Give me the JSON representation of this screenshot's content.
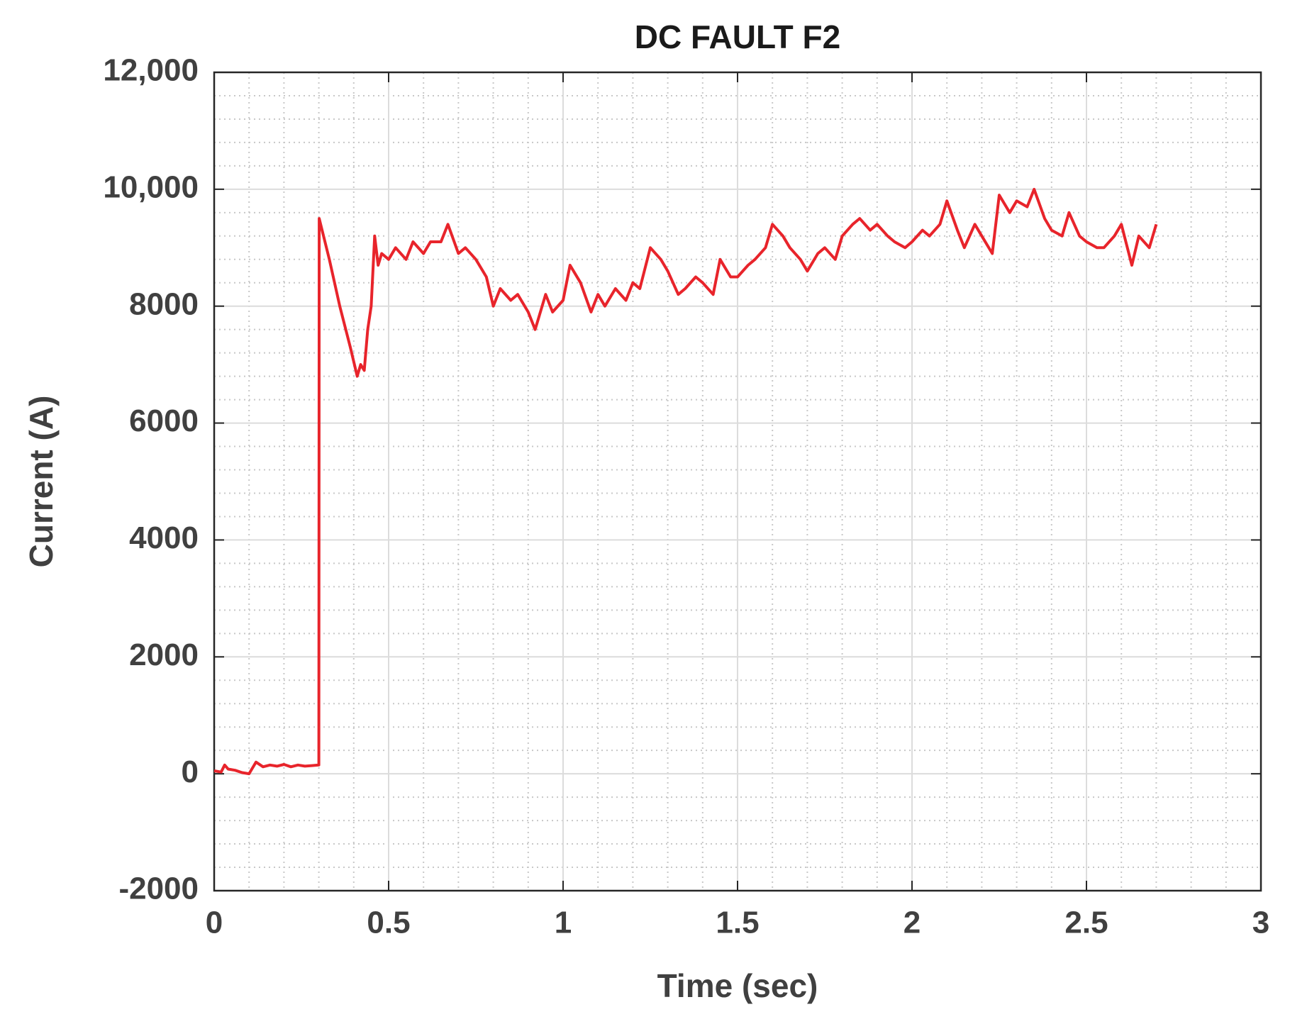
{
  "chart_data": {
    "type": "line",
    "title": "DC FAULT F2",
    "x_label": "Time (sec)",
    "y_label": "Current (A)",
    "xlim": [
      0,
      3
    ],
    "xticks": [
      0,
      0.5,
      1,
      1.5,
      2,
      2.5,
      3
    ],
    "ylim": [
      -2000,
      12000
    ],
    "yticks": [
      -2000,
      0,
      2000,
      4000,
      6000,
      8000,
      {
        "value": 10000,
        "label": "10,000"
      },
      {
        "value": 12000,
        "label": "12,000"
      }
    ],
    "grid": true,
    "minor_grid": true,
    "series": [
      {
        "color": "#e8242b",
        "x": [
          0,
          0.02,
          0.03,
          0.04,
          0.06,
          0.08,
          0.1,
          0.11,
          0.12,
          0.14,
          0.16,
          0.18,
          0.2,
          0.22,
          0.24,
          0.26,
          0.28,
          0.3,
          0.301,
          0.33,
          0.36,
          0.39,
          0.41,
          0.42,
          0.43,
          0.44,
          0.45,
          0.46,
          0.47,
          0.48,
          0.5,
          0.52,
          0.55,
          0.57,
          0.6,
          0.62,
          0.65,
          0.67,
          0.7,
          0.72,
          0.75,
          0.78,
          0.8,
          0.82,
          0.85,
          0.87,
          0.9,
          0.92,
          0.95,
          0.97,
          1.0,
          1.02,
          1.05,
          1.08,
          1.1,
          1.12,
          1.15,
          1.18,
          1.2,
          1.22,
          1.25,
          1.28,
          1.3,
          1.33,
          1.35,
          1.38,
          1.4,
          1.43,
          1.45,
          1.48,
          1.5,
          1.53,
          1.55,
          1.58,
          1.6,
          1.63,
          1.65,
          1.68,
          1.7,
          1.73,
          1.75,
          1.78,
          1.8,
          1.83,
          1.85,
          1.88,
          1.9,
          1.93,
          1.95,
          1.98,
          2.0,
          2.03,
          2.05,
          2.08,
          2.1,
          2.13,
          2.15,
          2.18,
          2.2,
          2.23,
          2.25,
          2.28,
          2.3,
          2.33,
          2.35,
          2.38,
          2.4,
          2.43,
          2.45,
          2.48,
          2.5,
          2.53,
          2.55,
          2.58,
          2.6,
          2.63,
          2.65,
          2.68,
          2.7
        ],
        "values": [
          50,
          30,
          150,
          80,
          60,
          20,
          0,
          100,
          200,
          120,
          150,
          130,
          160,
          120,
          150,
          130,
          140,
          150,
          9500,
          8800,
          8000,
          7300,
          6800,
          7000,
          6900,
          7600,
          8000,
          9200,
          8700,
          8900,
          8800,
          9000,
          8800,
          9100,
          8900,
          9100,
          9100,
          9400,
          8900,
          9000,
          8800,
          8500,
          8000,
          8300,
          8100,
          8200,
          7900,
          7600,
          8200,
          7900,
          8100,
          8700,
          8400,
          7900,
          8200,
          8000,
          8300,
          8100,
          8400,
          8300,
          9000,
          8800,
          8600,
          8200,
          8300,
          8500,
          8400,
          8200,
          8800,
          8500,
          8500,
          8700,
          8800,
          9000,
          9400,
          9200,
          9000,
          8800,
          8600,
          8900,
          9000,
          8800,
          9200,
          9400,
          9500,
          9300,
          9400,
          9200,
          9100,
          9000,
          9100,
          9300,
          9200,
          9400,
          9800,
          9300,
          9000,
          9400,
          9200,
          8900,
          9900,
          9600,
          9800,
          9700,
          10000,
          9500,
          9300,
          9200,
          9600,
          9200,
          9100,
          9000,
          9000,
          9200,
          9400,
          8700,
          9200,
          9000,
          9400
        ]
      }
    ]
  }
}
